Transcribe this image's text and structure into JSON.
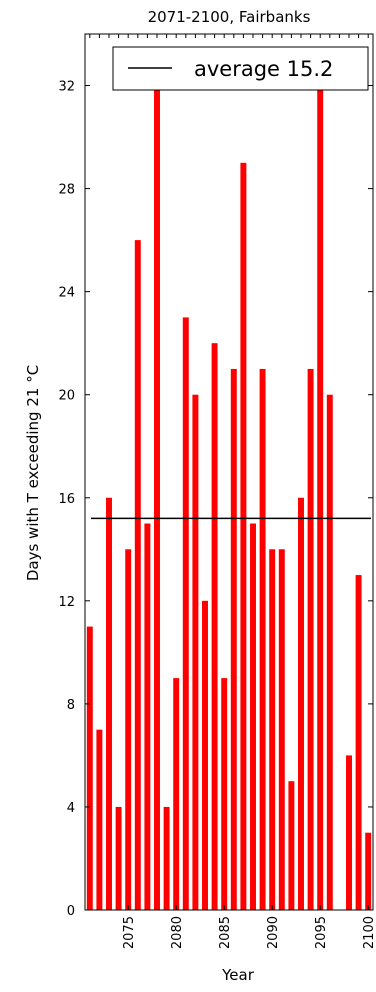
{
  "chart_data": {
    "type": "bar",
    "title": "2071-2100, Fairbanks",
    "xlabel": "Year",
    "ylabel": "Days with T exceeding 21 °C",
    "x": [
      2071,
      2072,
      2073,
      2074,
      2075,
      2076,
      2077,
      2078,
      2079,
      2080,
      2081,
      2082,
      2083,
      2084,
      2085,
      2086,
      2087,
      2088,
      2089,
      2090,
      2091,
      2092,
      2093,
      2094,
      2095,
      2096,
      2097,
      2098,
      2099,
      2100
    ],
    "values": [
      11,
      7,
      16,
      4,
      14,
      26,
      15,
      32,
      4,
      9,
      23,
      20,
      12,
      22,
      9,
      21,
      29,
      15,
      21,
      14,
      14,
      5,
      16,
      21,
      32,
      20,
      0,
      6,
      13,
      3
    ],
    "bar_color": "#ff0000",
    "xlim": [
      2070.5,
      2100.5
    ],
    "ylim": [
      0,
      34
    ],
    "yticks": [
      0,
      4,
      8,
      12,
      16,
      20,
      24,
      28,
      32
    ],
    "xticks": [
      2075,
      2080,
      2085,
      2090,
      2095,
      2100
    ],
    "reference_line": {
      "value": 15.2,
      "color": "#000000"
    },
    "legend": {
      "label": "average 15.2",
      "position": "top-right"
    },
    "grid": false
  }
}
